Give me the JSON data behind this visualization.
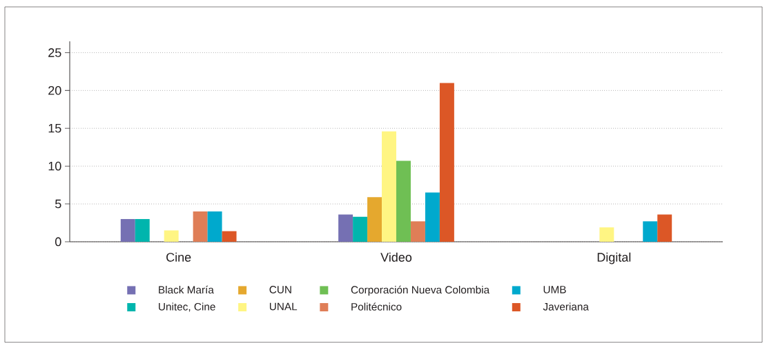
{
  "chart_data": {
    "type": "bar",
    "categories": [
      "Cine",
      "Video",
      "Digital"
    ],
    "series": [
      {
        "name": "Black María",
        "color": "#7570b3",
        "values": [
          3.0,
          3.6,
          null
        ]
      },
      {
        "name": "Unitec, Cine",
        "color": "#00b5ad",
        "values": [
          3.0,
          3.3,
          null
        ]
      },
      {
        "name": "CUN",
        "color": "#e5a82e",
        "values": [
          null,
          5.9,
          null
        ]
      },
      {
        "name": "UNAL",
        "color": "#fff583",
        "values": [
          1.5,
          14.6,
          1.9
        ]
      },
      {
        "name": "Corporación Nueva Colombia",
        "color": "#6fbf54",
        "values": [
          null,
          10.7,
          null
        ]
      },
      {
        "name": "Politécnico",
        "color": "#df7e57",
        "values": [
          4.0,
          2.7,
          null
        ]
      },
      {
        "name": "UMB",
        "color": "#00a9cd",
        "values": [
          4.0,
          6.5,
          2.7
        ]
      },
      {
        "name": "Javeriana",
        "color": "#dc5726",
        "values": [
          1.4,
          21.0,
          3.6
        ]
      }
    ],
    "ylim": [
      0,
      26.5
    ],
    "yticks": [
      0,
      5,
      10,
      15,
      20,
      25
    ],
    "grid": "y",
    "legend": "bottom"
  }
}
